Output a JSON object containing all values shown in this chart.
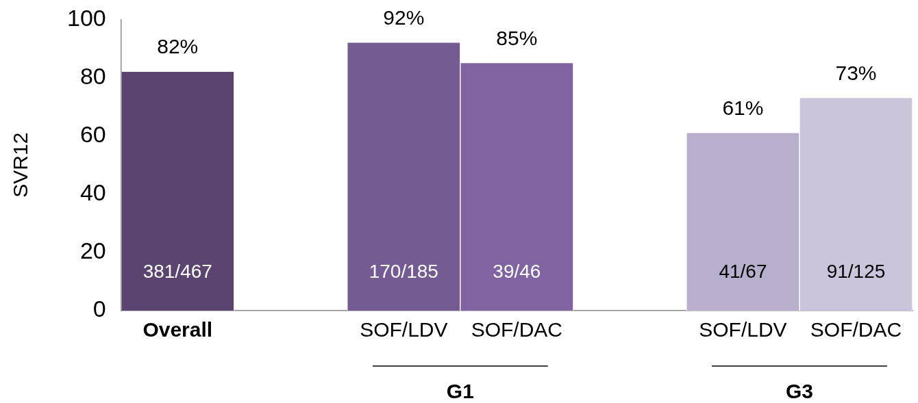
{
  "chart_data": {
    "type": "bar",
    "ylabel": "SVR12",
    "categories": [
      "Overall",
      null,
      "SOF/LDV",
      "SOF/DAC",
      null,
      "SOF/LDV",
      "SOF/DAC"
    ],
    "values": [
      82,
      null,
      92,
      85,
      null,
      61,
      73
    ],
    "colors": [
      "#5c4470",
      null,
      "#755b94",
      "#8064a2",
      null,
      "#b9aecb",
      "#ccc4da"
    ],
    "value_labels": [
      "82%",
      null,
      "92%",
      "85%",
      null,
      "61%",
      "73%"
    ],
    "ylim": [
      0,
      100
    ],
    "yticks": [
      0,
      20,
      40,
      60,
      80,
      100
    ],
    "grid": false,
    "legend": false,
    "annotations": [
      "381/467",
      "170/185",
      "39/46",
      "41/67",
      "91/125",
      "G1",
      "G3"
    ]
  }
}
